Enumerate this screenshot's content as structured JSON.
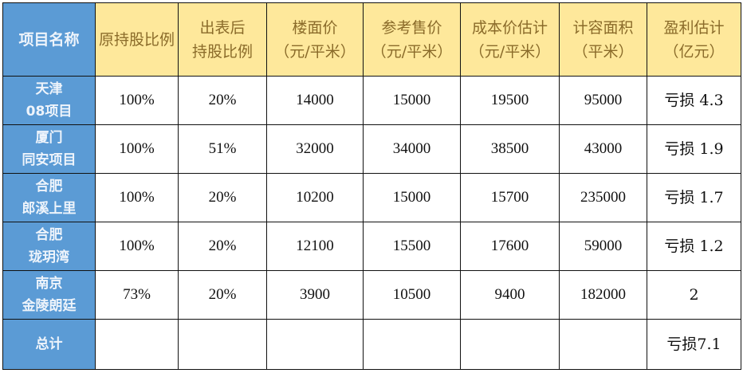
{
  "colors": {
    "header_blue": "#5b9bd5",
    "header_yellow": "#fee89b",
    "header_text": "#8a6b2a"
  },
  "headers": [
    {
      "l1": "项目名称",
      "l2": ""
    },
    {
      "l1": "原持股比例",
      "l2": ""
    },
    {
      "l1": "出表后",
      "l2": "持股比例"
    },
    {
      "l1": "楼面价",
      "l2": "（元/平米）"
    },
    {
      "l1": "参考售价",
      "l2": "（元/平米）"
    },
    {
      "l1": "成本价估计",
      "l2": "（元/平米）"
    },
    {
      "l1": "计容面积",
      "l2": "（平米）"
    },
    {
      "l1": "盈利估计",
      "l2": "（亿元）"
    }
  ],
  "rows": [
    {
      "name1": "天津",
      "name2": "08项目",
      "orig": "100%",
      "after": "20%",
      "floor": "14000",
      "sale": "15000",
      "cost": "19500",
      "area": "95000",
      "profit": "亏损 4.3"
    },
    {
      "name1": "厦门",
      "name2": "同安项目",
      "orig": "100%",
      "after": "51%",
      "floor": "32000",
      "sale": "34000",
      "cost": "38500",
      "area": "43000",
      "profit": "亏损 1.9"
    },
    {
      "name1": "合肥",
      "name2": "郎溪上里",
      "orig": "100%",
      "after": "20%",
      "floor": "10200",
      "sale": "15000",
      "cost": "15700",
      "area": "235000",
      "profit": "亏损 1.7"
    },
    {
      "name1": "合肥",
      "name2": "珑玥湾",
      "orig": "100%",
      "after": "20%",
      "floor": "12100",
      "sale": "15500",
      "cost": "17600",
      "area": "59000",
      "profit": "亏损 1.2"
    },
    {
      "name1": "南京",
      "name2": "金陵朗廷",
      "orig": "73%",
      "after": "20%",
      "floor": "3900",
      "sale": "10500",
      "cost": "9400",
      "area": "182000",
      "profit": "2"
    }
  ],
  "total": {
    "label": "总计",
    "profit": "亏损7.1"
  }
}
